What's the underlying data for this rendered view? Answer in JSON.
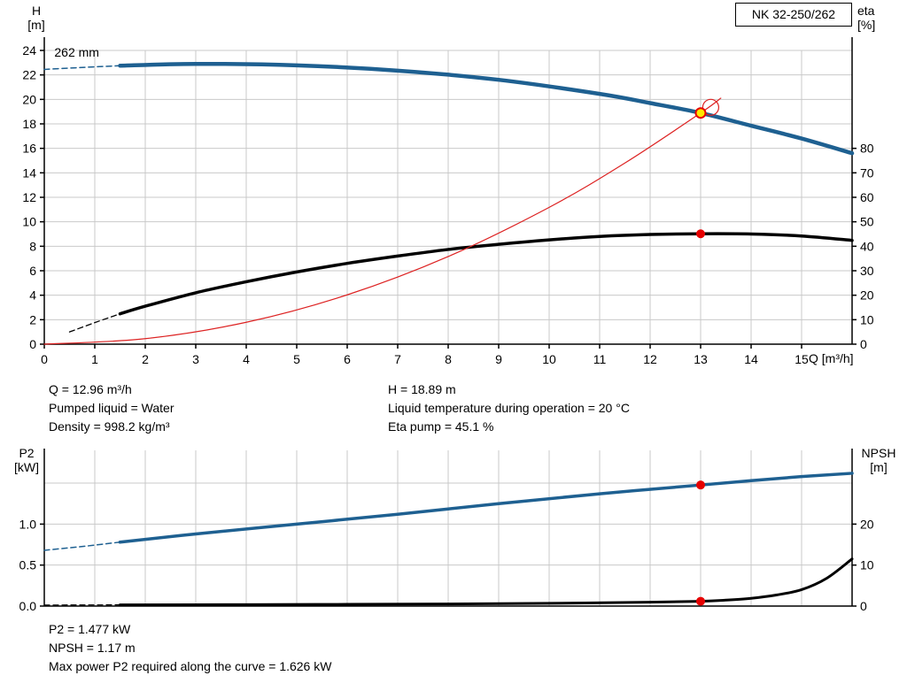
{
  "pump_model": "NK 32-250/262",
  "colors": {
    "curve_blue": "#1e6091",
    "curve_black": "#000000",
    "curve_red": "#dd2222",
    "marker_red": "#e60000",
    "marker_yellow": "#ffe800",
    "grid": "#c9c9c9",
    "axis": "#000000"
  },
  "info_top": {
    "left": [
      "Q = 12.96 m³/h",
      "Pumped liquid = Water",
      "Density = 998.2 kg/m³"
    ],
    "right": [
      "H = 18.89 m",
      "Liquid temperature during operation = 20 °C",
      "Eta pump = 45.1 %"
    ]
  },
  "info_bottom": [
    "P2 = 1.477 kW",
    "NPSH = 1.17 m",
    "Max power P2 required along the curve = 1.626 kW"
  ],
  "chart_data": [
    {
      "type": "line",
      "name": "QH-eta-curve",
      "x_axis": {
        "label": "Q [m³/h]",
        "min": 0,
        "max": 16,
        "grid_step": 1,
        "ticks": [
          {
            "v": 0,
            "label": "0"
          },
          {
            "v": 1,
            "label": "1"
          },
          {
            "v": 2,
            "label": "2"
          },
          {
            "v": 3,
            "label": "3"
          },
          {
            "v": 4,
            "label": "4"
          },
          {
            "v": 5,
            "label": "5"
          },
          {
            "v": 6,
            "label": "6"
          },
          {
            "v": 7,
            "label": "7"
          },
          {
            "v": 8,
            "label": "8"
          },
          {
            "v": 9,
            "label": "9"
          },
          {
            "v": 10,
            "label": "10"
          },
          {
            "v": 11,
            "label": "11"
          },
          {
            "v": 12,
            "label": "12"
          },
          {
            "v": 13,
            "label": "13"
          },
          {
            "v": 14,
            "label": "14"
          },
          {
            "v": 15,
            "label": "15"
          }
        ]
      },
      "y_left": {
        "label_lines": [
          "H",
          "[m]"
        ],
        "min": 0,
        "max": 24,
        "ticks": [
          {
            "v": 0,
            "label": "0"
          },
          {
            "v": 2,
            "label": "2"
          },
          {
            "v": 4,
            "label": "4"
          },
          {
            "v": 6,
            "label": "6"
          },
          {
            "v": 8,
            "label": "8"
          },
          {
            "v": 10,
            "label": "10"
          },
          {
            "v": 12,
            "label": "12"
          },
          {
            "v": 14,
            "label": "14"
          },
          {
            "v": 16,
            "label": "16"
          },
          {
            "v": 18,
            "label": "18"
          },
          {
            "v": 20,
            "label": "20"
          },
          {
            "v": 22,
            "label": "22"
          },
          {
            "v": 24,
            "label": "24"
          }
        ]
      },
      "y_right": {
        "label_lines": [
          "eta",
          "[%]"
        ],
        "min": 0,
        "max": 120,
        "ticks": [
          {
            "v": 0,
            "label": "0"
          },
          {
            "v": 10,
            "label": "10"
          },
          {
            "v": 20,
            "label": "20"
          },
          {
            "v": 30,
            "label": "30"
          },
          {
            "v": 40,
            "label": "40"
          },
          {
            "v": 50,
            "label": "50"
          },
          {
            "v": 60,
            "label": "60"
          },
          {
            "v": 70,
            "label": "70"
          },
          {
            "v": 80,
            "label": "80"
          }
        ]
      },
      "annotations": [
        {
          "text": "262 mm",
          "x": 0.2,
          "y": 23.5
        }
      ],
      "series": [
        {
          "name": "head-curve-dashed",
          "color": "curve_blue",
          "width": 1.5,
          "style": "dashed",
          "yaxis": "left",
          "points": [
            [
              0,
              22.45
            ],
            [
              0.8,
              22.62
            ],
            [
              1.5,
              22.75
            ]
          ]
        },
        {
          "name": "head-curve-262mm",
          "color": "curve_blue",
          "width": 4.5,
          "style": "solid",
          "yaxis": "left",
          "points": [
            [
              1.5,
              22.75
            ],
            [
              3,
              22.9
            ],
            [
              5,
              22.78
            ],
            [
              7,
              22.35
            ],
            [
              9,
              21.6
            ],
            [
              11,
              20.45
            ],
            [
              12,
              19.7
            ],
            [
              13,
              18.89
            ],
            [
              14,
              17.85
            ],
            [
              15,
              16.8
            ],
            [
              16,
              15.6
            ]
          ]
        },
        {
          "name": "eta-curve-dashed",
          "color": "curve_black",
          "width": 1.3,
          "style": "dashed",
          "yaxis": "right",
          "points": [
            [
              0.5,
              5
            ],
            [
              1,
              8.8
            ],
            [
              1.5,
              12.4
            ]
          ]
        },
        {
          "name": "eta-curve",
          "color": "curve_black",
          "width": 3.5,
          "style": "solid",
          "yaxis": "right",
          "points": [
            [
              1.5,
              12.4
            ],
            [
              2,
              15.5
            ],
            [
              3,
              21
            ],
            [
              4,
              25.5
            ],
            [
              5,
              29.5
            ],
            [
              6,
              33
            ],
            [
              7,
              36
            ],
            [
              8,
              38.7
            ],
            [
              9,
              40.8
            ],
            [
              10,
              42.6
            ],
            [
              11,
              44
            ],
            [
              12,
              44.8
            ],
            [
              13,
              45.1
            ],
            [
              14,
              45
            ],
            [
              15,
              44.2
            ],
            [
              16,
              42.4
            ]
          ]
        },
        {
          "name": "system-curve",
          "color": "curve_red",
          "width": 1.2,
          "style": "solid",
          "yaxis": "left",
          "points": [
            [
              0,
              0
            ],
            [
              2,
              0.45
            ],
            [
              4,
              1.79
            ],
            [
              6,
              4.03
            ],
            [
              8,
              7.16
            ],
            [
              10,
              11.18
            ],
            [
              11.5,
              14.8
            ],
            [
              13,
              18.89
            ],
            [
              13.4,
              20.1
            ]
          ]
        }
      ],
      "markers": [
        {
          "name": "system-curve-end-circle",
          "x": 13.2,
          "y": 19.35,
          "yaxis": "left",
          "r": 9,
          "fill": "",
          "stroke": "curve_red",
          "stroke_width": 1.2
        },
        {
          "name": "duty-point",
          "x": 13,
          "y": 18.89,
          "yaxis": "left",
          "r": 5.5,
          "fill": "marker_yellow",
          "stroke": "marker_red",
          "stroke_width": 2
        },
        {
          "name": "eta-point",
          "x": 13,
          "y": 45.1,
          "yaxis": "right",
          "r": 5,
          "fill": "marker_red",
          "stroke": "",
          "stroke_width": 0
        }
      ]
    },
    {
      "type": "line",
      "name": "P2-NPSH-curve",
      "x_axis": {
        "label": "",
        "min": 0,
        "max": 16,
        "grid_step": 1,
        "ticks": []
      },
      "y_left": {
        "label_lines": [
          "P2",
          "[kW]"
        ],
        "min": 0,
        "max": 1.9,
        "ticks": [
          {
            "v": 0,
            "label": "0.0"
          },
          {
            "v": 0.5,
            "label": "0.5"
          },
          {
            "v": 1,
            "label": "1.0"
          },
          {
            "v": 1.5,
            "label": ""
          }
        ]
      },
      "y_right": {
        "label_lines": [
          "NPSH",
          "[m]"
        ],
        "min": 0,
        "max": 38,
        "ticks": [
          {
            "v": 0,
            "label": "0"
          },
          {
            "v": 10,
            "label": "10"
          },
          {
            "v": 20,
            "label": "20"
          }
        ]
      },
      "annotations": [],
      "series": [
        {
          "name": "p2-curve-dashed",
          "color": "curve_blue",
          "width": 1.5,
          "style": "dashed",
          "yaxis": "left",
          "points": [
            [
              0,
              0.68
            ],
            [
              0.8,
              0.73
            ],
            [
              1.5,
              0.78
            ]
          ]
        },
        {
          "name": "p2-curve",
          "color": "curve_blue",
          "width": 3.5,
          "style": "solid",
          "yaxis": "left",
          "points": [
            [
              1.5,
              0.78
            ],
            [
              3,
              0.88
            ],
            [
              5,
              1.0
            ],
            [
              7,
              1.12
            ],
            [
              9,
              1.25
            ],
            [
              11,
              1.37
            ],
            [
              13,
              1.477
            ],
            [
              14,
              1.53
            ],
            [
              15,
              1.58
            ],
            [
              16,
              1.62
            ]
          ]
        },
        {
          "name": "npsh-curve-dashed",
          "color": "curve_black",
          "width": 1.2,
          "style": "dashed",
          "yaxis": "right",
          "points": [
            [
              0,
              0.25
            ],
            [
              1.5,
              0.3
            ]
          ]
        },
        {
          "name": "npsh-curve",
          "color": "curve_black",
          "width": 3,
          "style": "solid",
          "yaxis": "right",
          "points": [
            [
              1.5,
              0.3
            ],
            [
              4,
              0.35
            ],
            [
              6,
              0.42
            ],
            [
              8,
              0.52
            ],
            [
              10,
              0.68
            ],
            [
              12,
              0.95
            ],
            [
              13,
              1.17
            ],
            [
              13.5,
              1.45
            ],
            [
              14,
              1.9
            ],
            [
              14.5,
              2.7
            ],
            [
              15,
              4
            ],
            [
              15.5,
              6.8
            ],
            [
              16,
              11.5
            ]
          ]
        }
      ],
      "markers": [
        {
          "name": "p2-point",
          "x": 13,
          "y": 1.477,
          "yaxis": "left",
          "r": 5,
          "fill": "marker_red",
          "stroke": "",
          "stroke_width": 0
        },
        {
          "name": "npsh-point",
          "x": 13,
          "y": 1.17,
          "yaxis": "right",
          "r": 5,
          "fill": "marker_red",
          "stroke": "",
          "stroke_width": 0
        }
      ]
    }
  ]
}
